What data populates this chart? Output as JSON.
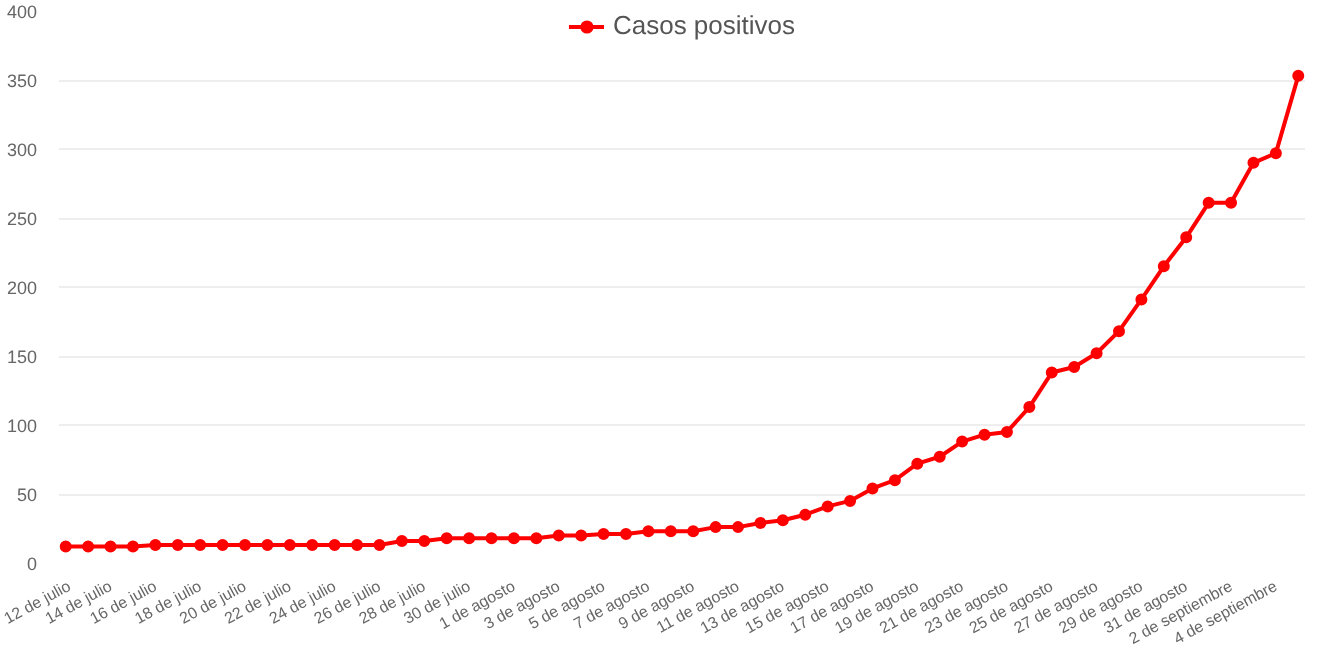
{
  "chart_data": {
    "type": "line",
    "categories": [
      "12 de julio",
      null,
      "14 de julio",
      null,
      "16 de julio",
      null,
      "18 de julio",
      null,
      "20 de julio",
      null,
      "22 de julio",
      null,
      "24 de julio",
      null,
      "26 de julio",
      null,
      "28 de julio",
      null,
      "30 de julio",
      null,
      "1 de agosto",
      null,
      "3 de agosto",
      null,
      "5 de agosto",
      null,
      "7 de agosto",
      null,
      "9 de agosto",
      null,
      "11 de agosto",
      null,
      "13 de agosto",
      null,
      "15 de agosto",
      null,
      "17 de agosto",
      null,
      "19 de agosto",
      null,
      "21 de agosto",
      null,
      "23 de agosto",
      null,
      "25 de agosto",
      null,
      "27 de agosto",
      null,
      "29 de agosto",
      null,
      "31 de agosto",
      null,
      "2 de septiembre",
      null,
      "4 de septiembre",
      null
    ],
    "series": [
      {
        "name": "Casos positivos",
        "color": "#ff0000",
        "values": [
          12,
          12,
          12,
          12,
          13,
          13,
          13,
          13,
          13,
          13,
          13,
          13,
          13,
          13,
          13,
          16,
          16,
          18,
          18,
          18,
          18,
          18,
          20,
          20,
          21,
          21,
          23,
          23,
          23,
          26,
          26,
          29,
          31,
          35,
          41,
          45,
          54,
          60,
          72,
          77,
          88,
          93,
          95,
          113,
          138,
          142,
          152,
          168,
          191,
          215,
          236,
          261,
          261,
          290,
          297,
          353
        ]
      }
    ],
    "ylim": [
      0,
      400
    ],
    "yticks": [
      0,
      50,
      100,
      150,
      200,
      250,
      300,
      350,
      400
    ],
    "grid": "y",
    "legend": "top",
    "marker": "circle",
    "line_style": "solid"
  }
}
